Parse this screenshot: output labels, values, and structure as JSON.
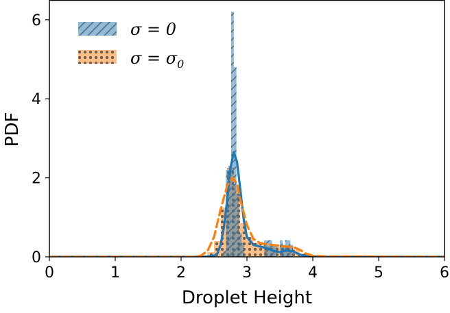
{
  "chart_data": {
    "type": "histogram",
    "xlabel": "Droplet Height",
    "ylabel": "PDF",
    "xlim": [
      0,
      6
    ],
    "ylim": [
      0,
      6.5
    ],
    "xticks": [
      "0",
      "1",
      "2",
      "3",
      "4",
      "5",
      "6"
    ],
    "yticks": [
      "0",
      "2",
      "4",
      "6"
    ],
    "legend_position": "upper-left",
    "grid": false,
    "series": [
      {
        "name": "σ = 0",
        "legend_label": "σ = 0",
        "color": "#1f77b4",
        "fill_alpha": 0.5,
        "hatch": "diagonal",
        "bin_width": 0.04,
        "bins": [
          [
            2.66,
            0.15
          ],
          [
            2.7,
            2.2
          ],
          [
            2.74,
            2.3
          ],
          [
            2.78,
            6.2
          ],
          [
            2.82,
            4.8
          ],
          [
            2.86,
            1.6
          ],
          [
            2.9,
            0.6
          ],
          [
            2.94,
            0.35
          ],
          [
            3.28,
            0.42
          ],
          [
            3.32,
            0.42
          ],
          [
            3.36,
            0.42
          ],
          [
            3.4,
            0.3
          ],
          [
            3.44,
            0.3
          ],
          [
            3.52,
            0.42
          ],
          [
            3.56,
            0.3
          ],
          [
            3.6,
            0.42
          ],
          [
            3.64,
            0.42
          ],
          [
            3.68,
            0.3
          ]
        ],
        "kde": [
          [
            0.0,
            0.0
          ],
          [
            2.3,
            0.0
          ],
          [
            2.4,
            0.01
          ],
          [
            2.5,
            0.03
          ],
          [
            2.55,
            0.08
          ],
          [
            2.6,
            0.3
          ],
          [
            2.65,
            0.75
          ],
          [
            2.7,
            1.45
          ],
          [
            2.75,
            2.25
          ],
          [
            2.8,
            2.65
          ],
          [
            2.85,
            2.4
          ],
          [
            2.9,
            1.7
          ],
          [
            2.95,
            0.95
          ],
          [
            3.0,
            0.5
          ],
          [
            3.1,
            0.3
          ],
          [
            3.2,
            0.26
          ],
          [
            3.3,
            0.22
          ],
          [
            3.4,
            0.15
          ],
          [
            3.5,
            0.12
          ],
          [
            3.6,
            0.16
          ],
          [
            3.7,
            0.14
          ],
          [
            3.8,
            0.06
          ],
          [
            3.9,
            0.02
          ],
          [
            4.1,
            0.0
          ],
          [
            6.0,
            0.0
          ]
        ]
      },
      {
        "name": "σ = σ0",
        "legend_label": "σ = σ",
        "legend_subscript": "0",
        "color": "#ff7f0e",
        "fill_alpha": 0.5,
        "hatch": "dots",
        "bin_width": 0.1,
        "bins": [
          [
            2.45,
            0.12
          ],
          [
            2.55,
            0.4
          ],
          [
            2.65,
            1.25
          ],
          [
            2.75,
            2.25
          ],
          [
            2.85,
            1.8
          ],
          [
            2.95,
            0.85
          ],
          [
            3.05,
            0.5
          ],
          [
            3.15,
            0.35
          ],
          [
            3.25,
            0.35
          ],
          [
            3.35,
            0.28
          ],
          [
            3.45,
            0.25
          ],
          [
            3.55,
            0.3
          ],
          [
            3.65,
            0.28
          ],
          [
            3.75,
            0.18
          ],
          [
            3.85,
            0.08
          ]
        ],
        "kde": [
          [
            0.0,
            0.0
          ],
          [
            2.2,
            0.0
          ],
          [
            2.3,
            0.03
          ],
          [
            2.4,
            0.15
          ],
          [
            2.5,
            0.5
          ],
          [
            2.6,
            1.2
          ],
          [
            2.7,
            1.8
          ],
          [
            2.78,
            2.0
          ],
          [
            2.85,
            1.85
          ],
          [
            2.9,
            1.45
          ],
          [
            3.0,
            0.8
          ],
          [
            3.1,
            0.45
          ],
          [
            3.2,
            0.35
          ],
          [
            3.3,
            0.32
          ],
          [
            3.4,
            0.3
          ],
          [
            3.5,
            0.28
          ],
          [
            3.6,
            0.26
          ],
          [
            3.7,
            0.25
          ],
          [
            3.8,
            0.18
          ],
          [
            3.9,
            0.08
          ],
          [
            4.0,
            0.03
          ],
          [
            4.2,
            0.01
          ],
          [
            6.0,
            0.0
          ]
        ]
      }
    ]
  }
}
